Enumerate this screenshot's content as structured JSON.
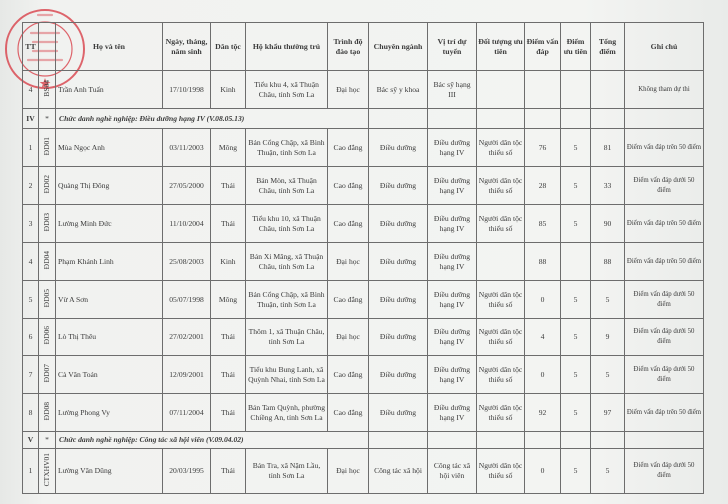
{
  "stamp": {
    "text": "BỆNH VIỆN ĐA KHOA KHU VỰC THUẬN CHÂU",
    "top_text": "TỈNH SƠN LA",
    "color": "#d9414a"
  },
  "headers": [
    "TT",
    "",
    "Họ và tên",
    "Ngày, tháng, năm sinh",
    "Dân tộc",
    "Hộ khẩu thường trú",
    "Trình độ đào tạo",
    "Chuyên ngành",
    "Vị trí dự tuyển",
    "Đối tượng ưu tiên",
    "Điểm vấn đáp",
    "Điểm ưu tiên",
    "Tổng điểm",
    "Ghi chú"
  ],
  "rows": [
    {
      "type": "person",
      "tt": "4",
      "code": "BS04",
      "name": "Trần Anh Tuấn",
      "dob": "17/10/1998",
      "ethnic": "Kinh",
      "address": "Tiểu khu 4, xã Thuận Châu, tỉnh Sơn La",
      "level": "Đại học",
      "major": "Bác sỹ y khoa",
      "position": "Bác sỹ hạng III",
      "priority": "",
      "oral": "",
      "bonus": "",
      "total": "",
      "note": "Không tham dự thi"
    },
    {
      "type": "section",
      "tt": "IV",
      "code": "*",
      "title": "Chức danh nghề nghiệp: Điều dưỡng hạng IV (V.08.05.13)"
    },
    {
      "type": "person",
      "tt": "1",
      "code": "ĐD01",
      "name": "Mùa Ngọc Anh",
      "dob": "03/11/2003",
      "ethnic": "Mông",
      "address": "Bản Cổng Chặp, xã Bình Thuận, tỉnh Sơn La",
      "level": "Cao đẳng",
      "major": "Điều dưỡng",
      "position": "Điều dưỡng hạng IV",
      "priority": "Người dân tộc thiểu số",
      "oral": "76",
      "bonus": "5",
      "total": "81",
      "note": "Điểm vấn đáp trên 50 điểm"
    },
    {
      "type": "person",
      "tt": "2",
      "code": "ĐD02",
      "name": "Quàng Thị Đông",
      "dob": "27/05/2000",
      "ethnic": "Thái",
      "address": "Bản Mòn, xã Thuận Châu, tỉnh Sơn La",
      "level": "Cao đẳng",
      "major": "Điều dưỡng",
      "position": "Điều dưỡng hạng IV",
      "priority": "Người dân tộc thiểu số",
      "oral": "28",
      "bonus": "5",
      "total": "33",
      "note": "Điểm vấn đáp dưới 50 điểm"
    },
    {
      "type": "person",
      "tt": "3",
      "code": "ĐD03",
      "name": "Lường Minh Đức",
      "dob": "11/10/2004",
      "ethnic": "Thái",
      "address": "Tiểu khu 10, xã Thuận Châu, tỉnh Sơn La",
      "level": "Cao đẳng",
      "major": "Điều dưỡng",
      "position": "Điều dưỡng hạng IV",
      "priority": "Người dân tộc thiểu số",
      "oral": "85",
      "bonus": "5",
      "total": "90",
      "note": "Điểm vấn đáp trên 50 điểm"
    },
    {
      "type": "person",
      "tt": "4",
      "code": "ĐD04",
      "name": "Phạm Khánh Linh",
      "dob": "25/08/2003",
      "ethnic": "Kinh",
      "address": "Bản Xi Măng, xã Thuận Châu, tỉnh Sơn La",
      "level": "Đại học",
      "major": "Điều dưỡng",
      "position": "Điều dưỡng hạng IV",
      "priority": "",
      "oral": "88",
      "bonus": "",
      "total": "88",
      "note": "Điểm vấn đáp trên 50 điểm"
    },
    {
      "type": "person",
      "tt": "5",
      "code": "ĐD05",
      "name": "Vừ A Sơn",
      "dob": "05/07/1998",
      "ethnic": "Mông",
      "address": "Bản Cổng Chặp, xã Bình Thuận, tỉnh Sơn La",
      "level": "Cao đẳng",
      "major": "Điều dưỡng",
      "position": "Điều dưỡng hạng IV",
      "priority": "Người dân tộc thiểu số",
      "oral": "0",
      "bonus": "5",
      "total": "5",
      "note": "Điểm vấn đáp dưới 50 điểm"
    },
    {
      "type": "person",
      "tt": "6",
      "code": "ĐD06",
      "name": "Lò Thị Thêu",
      "dob": "27/02/2001",
      "ethnic": "Thái",
      "address": "Thôm 1, xã Thuận Châu, tỉnh Sơn La",
      "level": "Đại học",
      "major": "Điều dưỡng",
      "position": "Điều dưỡng hạng IV",
      "priority": "Người dân tộc thiểu số",
      "oral": "4",
      "bonus": "5",
      "total": "9",
      "note": "Điểm vấn đáp dưới 50 điểm"
    },
    {
      "type": "person",
      "tt": "7",
      "code": "ĐD07",
      "name": "Cà Văn Toán",
      "dob": "12/09/2001",
      "ethnic": "Thái",
      "address": "Tiểu khu Bung Lanh, xã Quỳnh Nhai, tỉnh Sơn La",
      "level": "Cao đẳng",
      "major": "Điều dưỡng",
      "position": "Điều dưỡng hạng IV",
      "priority": "Người dân tộc thiểu số",
      "oral": "0",
      "bonus": "5",
      "total": "5",
      "note": "Điểm vấn đáp dưới 50 điểm"
    },
    {
      "type": "person",
      "tt": "8",
      "code": "ĐD08",
      "name": "Lường Phong Vy",
      "dob": "07/11/2004",
      "ethnic": "Thái",
      "address": "Bản Tam Quỳnh, phường Chiềng An, tỉnh Sơn La",
      "level": "Cao đẳng",
      "major": "Điều dưỡng",
      "position": "Điều dưỡng hạng IV",
      "priority": "Người dân tộc thiểu số",
      "oral": "92",
      "bonus": "5",
      "total": "97",
      "note": "Điểm vấn đáp trên 50 điểm"
    },
    {
      "type": "section",
      "tt": "V",
      "code": "*",
      "title": "Chức danh nghề nghiệp: Công tác xã hội viên (V.09.04.02)"
    },
    {
      "type": "person",
      "tt": "1",
      "code": "CTXHV01",
      "name": "Lường Văn Dũng",
      "dob": "20/03/1995",
      "ethnic": "Thái",
      "address": "Bản Tra, xã Nặm Lầu, tỉnh Sơn La",
      "level": "Đại học",
      "major": "Công tác xã hội",
      "position": "Công tác xã hội viên",
      "priority": "Người dân tộc thiểu số",
      "oral": "0",
      "bonus": "5",
      "total": "5",
      "note": "Điểm vấn đáp dưới 50 điểm"
    }
  ]
}
